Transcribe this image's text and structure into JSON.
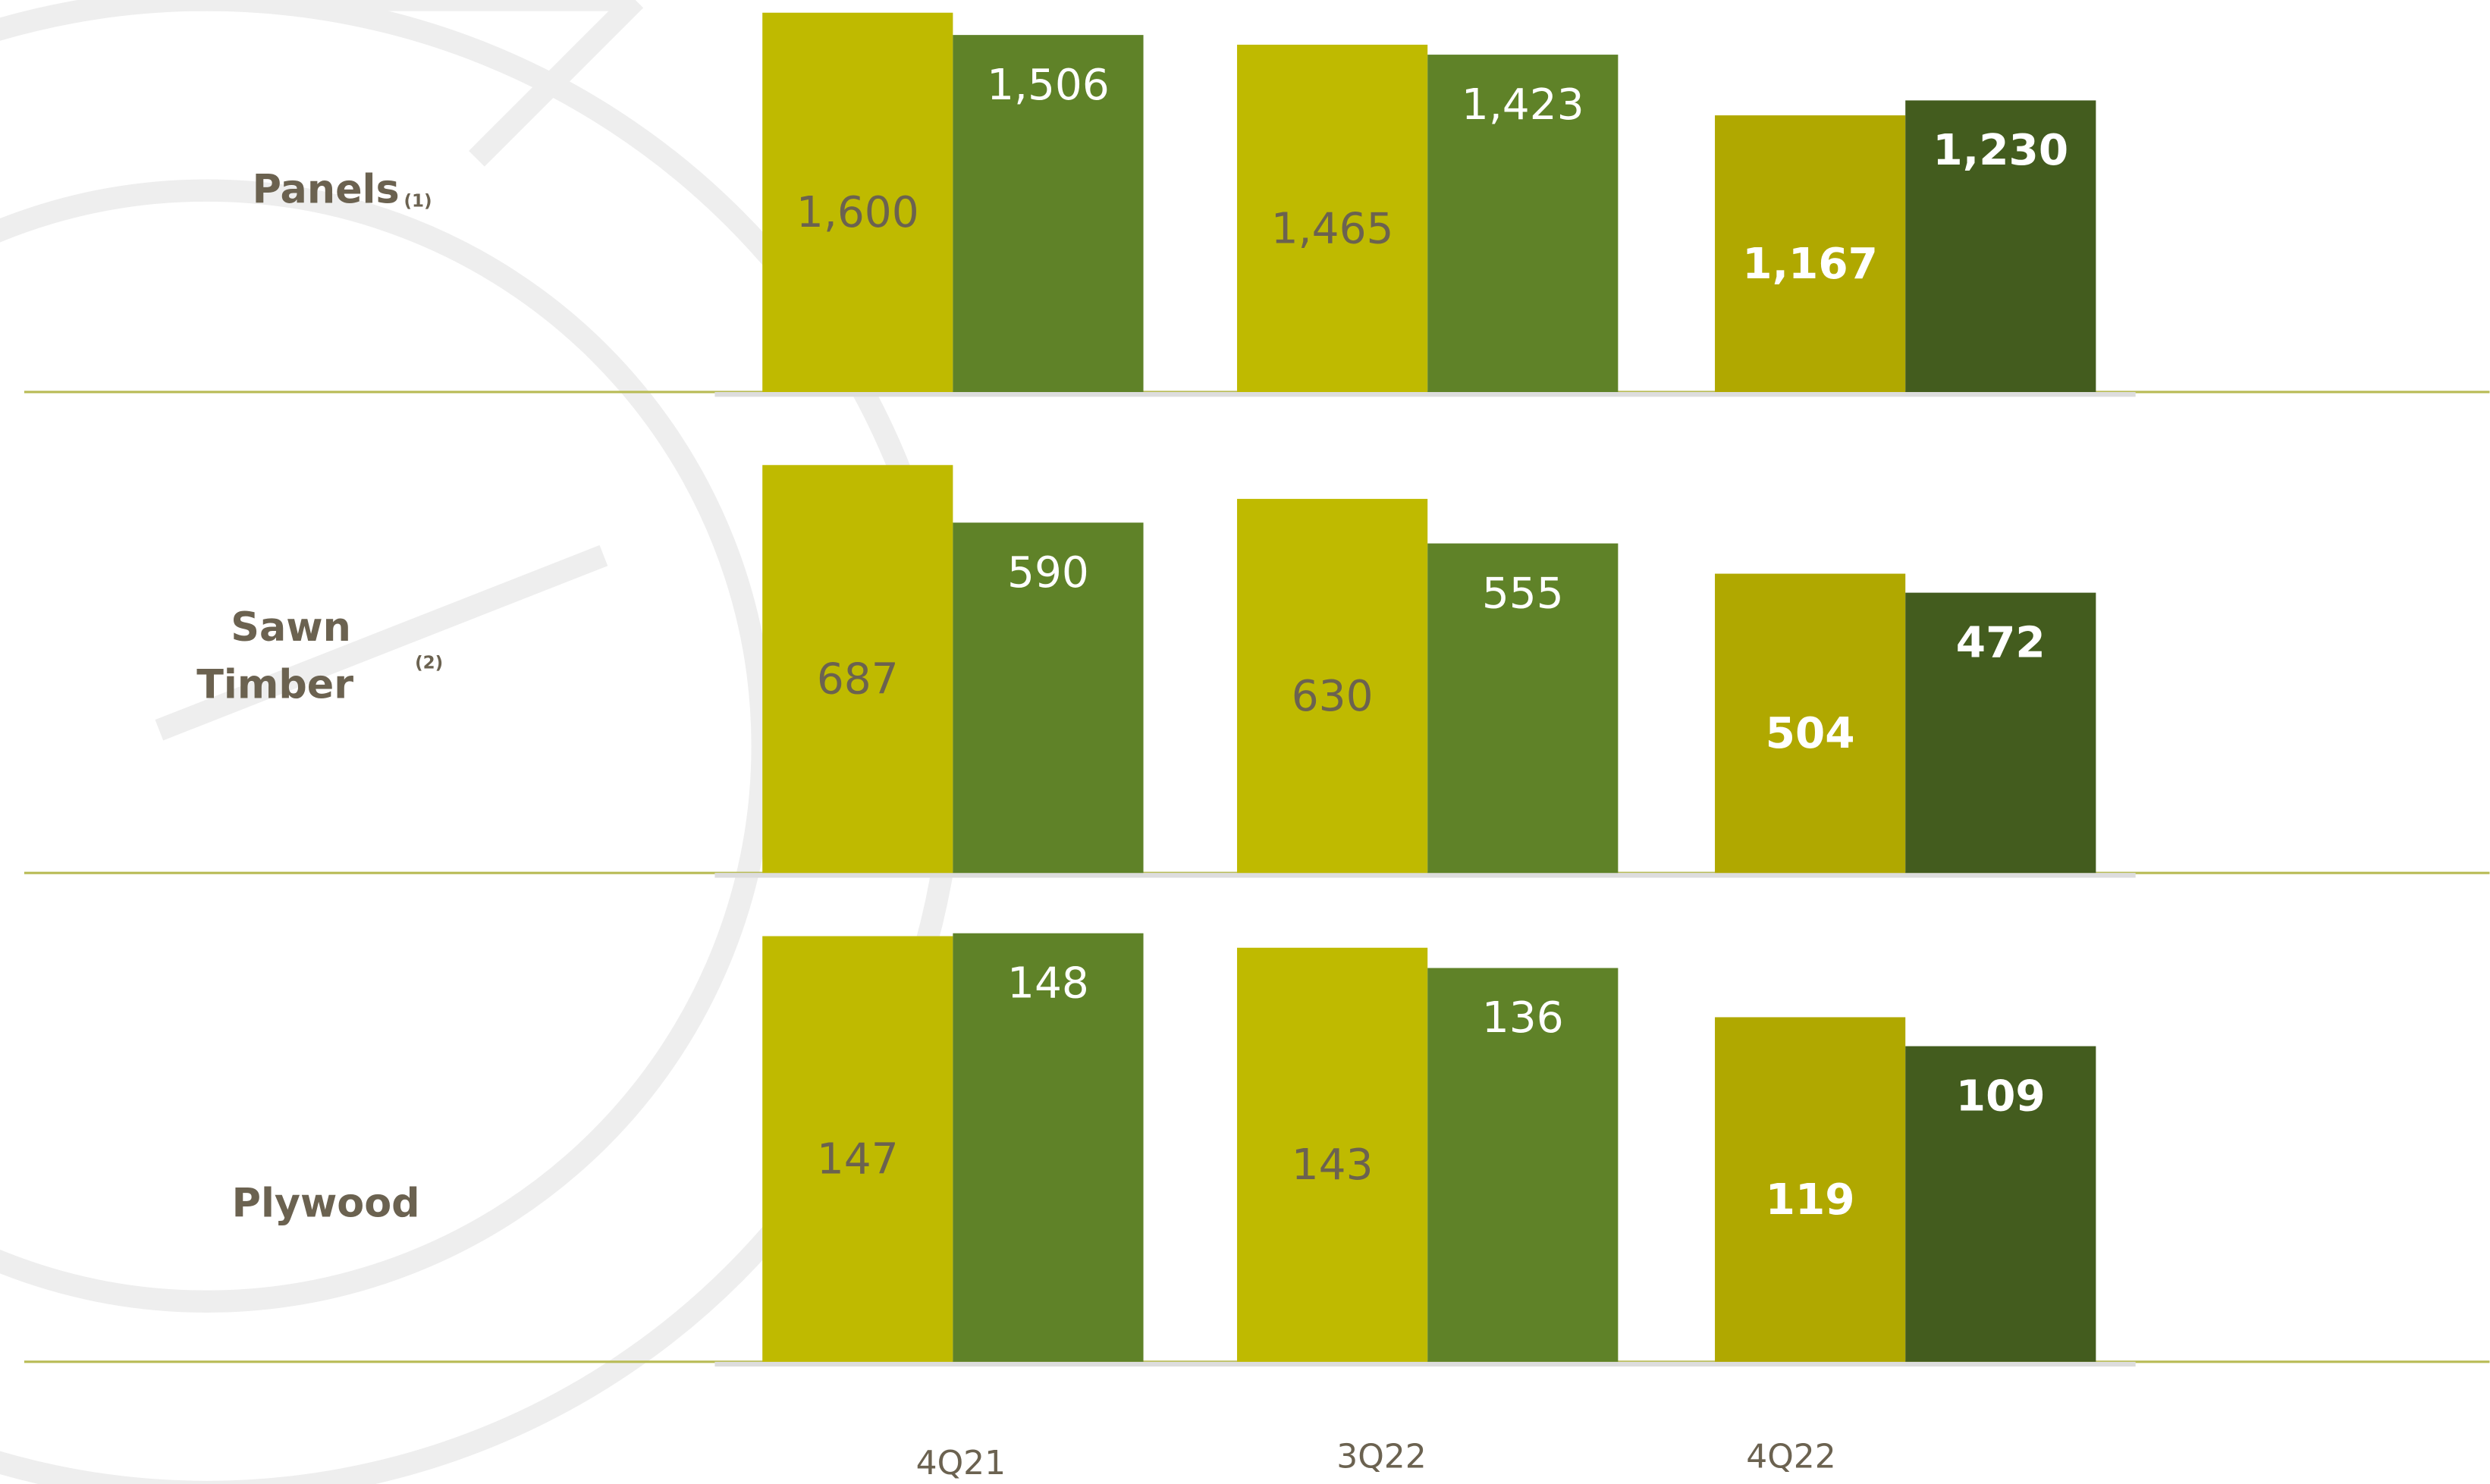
{
  "chart_data": {
    "type": "bar",
    "categories": [
      "4Q21",
      "3Q22",
      "4Q22"
    ],
    "groups": [
      {
        "title": "Panels",
        "note": "(1)",
        "series": [
          {
            "values": [
              1600,
              1465,
              1167
            ],
            "colors": [
              "#bfba00",
              "#bfba00",
              "#b0a800"
            ],
            "label_colors": [
              "#6b6250",
              "#6b6250",
              "#ffffff"
            ]
          },
          {
            "values": [
              1506,
              1423,
              1230
            ],
            "colors": [
              "#5f8228",
              "#5f8228",
              "#435c1e"
            ],
            "label_colors": [
              "#ffffff",
              "#ffffff",
              "#ffffff"
            ]
          }
        ],
        "value_labels": [
          [
            "1,600",
            "1,465",
            "1,167"
          ],
          [
            "1,506",
            "1,423",
            "1,230"
          ]
        ]
      },
      {
        "title": "Sawn Timber",
        "note": "(2)",
        "series": [
          {
            "values": [
              687,
              630,
              504
            ],
            "colors": [
              "#bfba00",
              "#bfba00",
              "#b0a800"
            ],
            "label_colors": [
              "#6b6250",
              "#6b6250",
              "#ffffff"
            ]
          },
          {
            "values": [
              590,
              555,
              472
            ],
            "colors": [
              "#5f8228",
              "#5f8228",
              "#435c1e"
            ],
            "label_colors": [
              "#ffffff",
              "#ffffff",
              "#ffffff"
            ]
          }
        ]
      },
      {
        "title": "Plywood",
        "series": [
          {
            "values": [
              147,
              143,
              119
            ],
            "colors": [
              "#bfba00",
              "#bfba00",
              "#b0a800"
            ],
            "label_colors": [
              "#6b6250",
              "#6b6250",
              "#ffffff"
            ]
          },
          {
            "values": [
              148,
              136,
              109
            ],
            "colors": [
              "#5f8228",
              "#5f8228",
              "#435c1e"
            ],
            "label_colors": [
              "#ffffff",
              "#ffffff",
              "#ffffff"
            ]
          }
        ]
      }
    ]
  }
}
